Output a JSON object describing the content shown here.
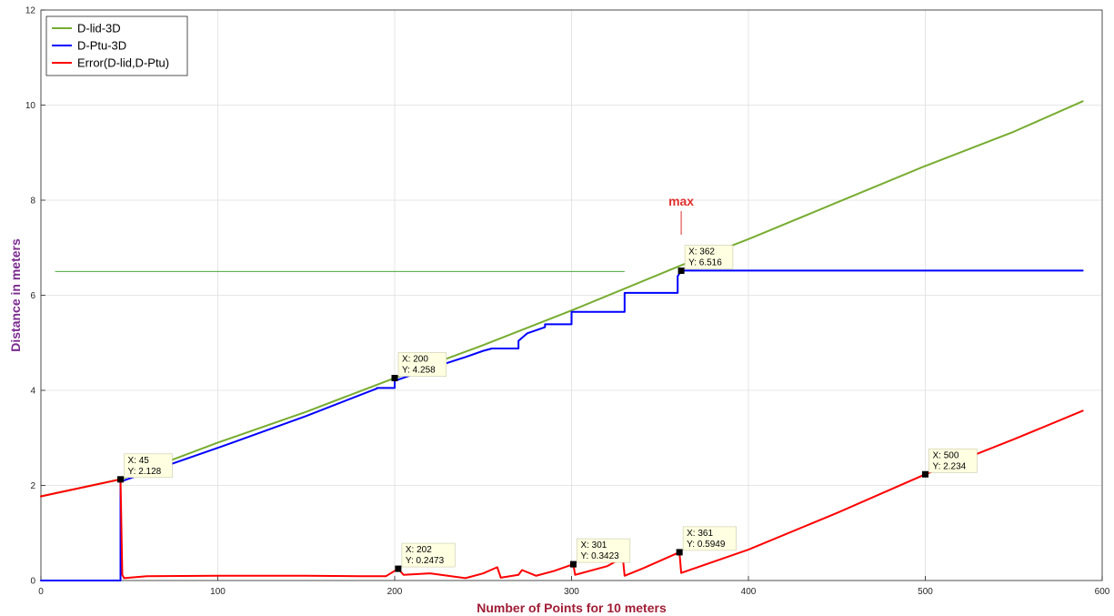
{
  "chart_data": {
    "type": "line",
    "title": "",
    "xlabel": "Number of Points for 10 meters",
    "ylabel": "Distance in meters",
    "xlim": [
      0,
      600
    ],
    "ylim": [
      0,
      12
    ],
    "xticks": [
      0,
      100,
      200,
      300,
      400,
      500,
      600
    ],
    "yticks": [
      0,
      2,
      4,
      6,
      8,
      10,
      12
    ],
    "grid": true,
    "legend_position": "top-left",
    "label_colors": {
      "xlabel": "#a01d36",
      "ylabel": "#7b2a8f"
    },
    "series": [
      {
        "name": "D-lid-3D",
        "color": "#77ac30",
        "x": [
          0,
          45,
          100,
          150,
          200,
          250,
          300,
          362,
          400,
          450,
          500,
          550,
          589
        ],
        "y": [
          1.77,
          2.13,
          2.9,
          3.55,
          4.26,
          4.95,
          5.68,
          6.63,
          7.18,
          7.95,
          8.72,
          9.44,
          10.08
        ]
      },
      {
        "name": "D-Ptu-3D",
        "color": "#0000ff",
        "x": [
          0,
          45,
          45,
          100,
          150,
          190,
          190,
          200,
          200,
          210,
          220,
          230,
          240,
          250,
          255,
          255,
          270,
          270,
          275,
          285,
          285,
          300,
          300,
          330,
          330,
          360,
          360,
          362,
          362,
          589
        ],
        "y": [
          0,
          0,
          2.08,
          2.79,
          3.46,
          4.04,
          4.05,
          4.05,
          4.2,
          4.33,
          4.44,
          4.58,
          4.7,
          4.83,
          4.88,
          4.88,
          4.88,
          5.04,
          5.2,
          5.33,
          5.39,
          5.39,
          5.65,
          5.65,
          6.05,
          6.05,
          6.4,
          6.52,
          6.52,
          6.52
        ]
      },
      {
        "name": "Error(D-lid,D-Ptu)",
        "color": "#ff0000",
        "x": [
          0,
          44,
          45,
          46,
          47,
          60,
          100,
          150,
          180,
          195,
          202,
          205,
          220,
          240,
          250,
          258,
          260,
          270,
          272,
          280,
          290,
          301,
          302,
          320,
          329,
          330,
          340,
          361,
          362,
          400,
          450,
          500,
          550,
          589
        ],
        "y": [
          1.77,
          2.12,
          2.128,
          0.12,
          0.05,
          0.09,
          0.1,
          0.1,
          0.09,
          0.09,
          0.2473,
          0.12,
          0.15,
          0.05,
          0.15,
          0.28,
          0.06,
          0.12,
          0.22,
          0.1,
          0.2,
          0.3423,
          0.12,
          0.3,
          0.48,
          0.1,
          0.25,
          0.5949,
          0.16,
          0.65,
          1.42,
          2.234,
          2.97,
          3.57
        ]
      }
    ],
    "reference_line": {
      "color": "#4aa83a",
      "x": [
        8,
        330
      ],
      "y": [
        6.5,
        6.5
      ]
    },
    "annotations": [
      {
        "text": "max",
        "color": "#e0302d",
        "x": 362,
        "y": 8
      }
    ],
    "datatips": [
      {
        "x_label": "X: 45",
        "y_label": "Y: 2.128",
        "x": 45,
        "y": 2.128
      },
      {
        "x_label": "X: 200",
        "y_label": "Y: 4.258",
        "x": 200,
        "y": 4.258
      },
      {
        "x_label": "X: 362",
        "y_label": "Y: 6.516",
        "x": 362,
        "y": 6.516
      },
      {
        "x_label": "X: 202",
        "y_label": "Y: 0.2473",
        "x": 202,
        "y": 0.2473
      },
      {
        "x_label": "X: 301",
        "y_label": "Y: 0.3423",
        "x": 301,
        "y": 0.3423
      },
      {
        "x_label": "X: 361",
        "y_label": "Y: 0.5949",
        "x": 361,
        "y": 0.5949
      },
      {
        "x_label": "X: 500",
        "y_label": "Y: 2.234",
        "x": 500,
        "y": 2.234
      }
    ]
  }
}
